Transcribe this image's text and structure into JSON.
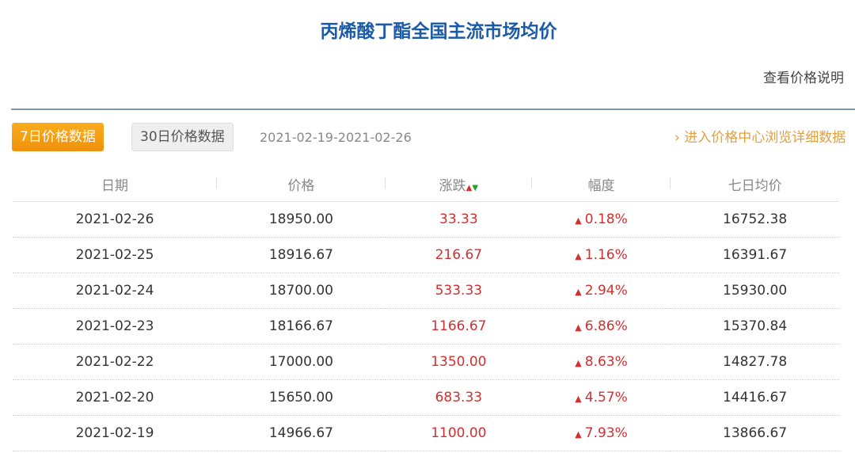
{
  "title": "丙烯酸丁酯全国主流市场均价",
  "explain_link": "查看价格说明",
  "tabs": [
    {
      "label": "7日价格数据",
      "active": true
    },
    {
      "label": "30日价格数据",
      "active": false
    }
  ],
  "date_range": "2021-02-19-2021-02-26",
  "more_link": "进入价格中心浏览详细数据",
  "columns": [
    "日期",
    "价格",
    "涨跌",
    "幅度",
    "七日均价"
  ],
  "rows": [
    {
      "date": "2021-02-26",
      "price": "18950.00",
      "change": "33.33",
      "pct": "0.18%",
      "avg7": "16752.38"
    },
    {
      "date": "2021-02-25",
      "price": "18916.67",
      "change": "216.67",
      "pct": "1.16%",
      "avg7": "16391.67"
    },
    {
      "date": "2021-02-24",
      "price": "18700.00",
      "change": "533.33",
      "pct": "2.94%",
      "avg7": "15930.00"
    },
    {
      "date": "2021-02-23",
      "price": "18166.67",
      "change": "1166.67",
      "pct": "6.86%",
      "avg7": "15370.84"
    },
    {
      "date": "2021-02-22",
      "price": "17000.00",
      "change": "1350.00",
      "pct": "8.63%",
      "avg7": "14827.78"
    },
    {
      "date": "2021-02-20",
      "price": "15650.00",
      "change": "683.33",
      "pct": "4.57%",
      "avg7": "14416.67"
    },
    {
      "date": "2021-02-19",
      "price": "14966.67",
      "change": "1100.00",
      "pct": "7.93%",
      "avg7": "13866.67"
    }
  ],
  "colors": {
    "title": "#1b5aa6",
    "up": "#d23030",
    "down": "#2a9a2a",
    "accent": "#f0900c"
  }
}
